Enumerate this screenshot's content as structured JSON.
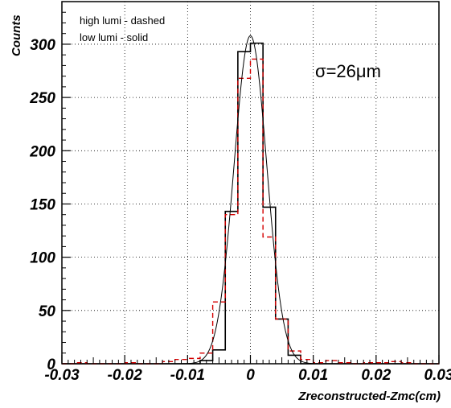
{
  "chart_data": {
    "type": "bar",
    "title": "",
    "xlabel": "Zreconstructed-Zmc(cm)",
    "ylabel": "Counts",
    "xlim": [
      -0.03,
      0.03
    ],
    "ylim": [
      0,
      340
    ],
    "bin_width": 0.002,
    "x_ticks": [
      -0.03,
      -0.02,
      -0.01,
      0,
      0.01,
      0.02,
      0.03
    ],
    "x_tick_labels": [
      "-0.03",
      "-0.02",
      "-0.01",
      "0",
      "0.01",
      "0.02",
      "0.03"
    ],
    "y_ticks": [
      0,
      50,
      100,
      150,
      200,
      250,
      300
    ],
    "y_tick_labels": [
      "0",
      "50",
      "100",
      "150",
      "200",
      "250",
      "300"
    ],
    "grid": true,
    "legend_lines": [
      "high lumi - dashed",
      "low lumi - solid"
    ],
    "annotation": "σ=26μm",
    "series": [
      {
        "name": "low lumi",
        "style": "solid",
        "color": "#000000",
        "bin_edges": [
          -0.03,
          -0.028,
          -0.026,
          -0.024,
          -0.022,
          -0.02,
          -0.018,
          -0.016,
          -0.014,
          -0.012,
          -0.01,
          -0.008,
          -0.006,
          -0.004,
          -0.002,
          0,
          0.002,
          0.004,
          0.006,
          0.008,
          0.01,
          0.012,
          0.014,
          0.016,
          0.018,
          0.02,
          0.022,
          0.024,
          0.026,
          0.028,
          0.03
        ],
        "values": [
          0,
          0,
          0,
          0,
          0,
          0,
          0,
          0,
          0,
          0,
          0,
          3,
          13,
          143,
          293,
          301,
          147,
          42,
          8,
          0,
          0,
          0,
          0,
          0,
          0,
          0,
          0,
          0,
          0,
          0
        ]
      },
      {
        "name": "high lumi",
        "style": "dashed",
        "color": "#d40000",
        "bin_edges": [
          -0.03,
          -0.028,
          -0.026,
          -0.024,
          -0.022,
          -0.02,
          -0.018,
          -0.016,
          -0.014,
          -0.012,
          -0.01,
          -0.008,
          -0.006,
          -0.004,
          -0.002,
          0,
          0.002,
          0.004,
          0.006,
          0.008,
          0.01,
          0.012,
          0.014,
          0.016,
          0.018,
          0.02,
          0.022,
          0.024,
          0.026,
          0.028,
          0.03
        ],
        "values": [
          0,
          1,
          0,
          0,
          0,
          1,
          0,
          0,
          2,
          4,
          5,
          10,
          58,
          140,
          268,
          286,
          119,
          42,
          12,
          4,
          1,
          3,
          1,
          0,
          1,
          1,
          2,
          1,
          0,
          0
        ]
      },
      {
        "name": "gaussian fit",
        "style": "smooth",
        "color": "#000000",
        "mean": 0.0,
        "sigma": 0.0026,
        "peak": 308
      }
    ]
  }
}
